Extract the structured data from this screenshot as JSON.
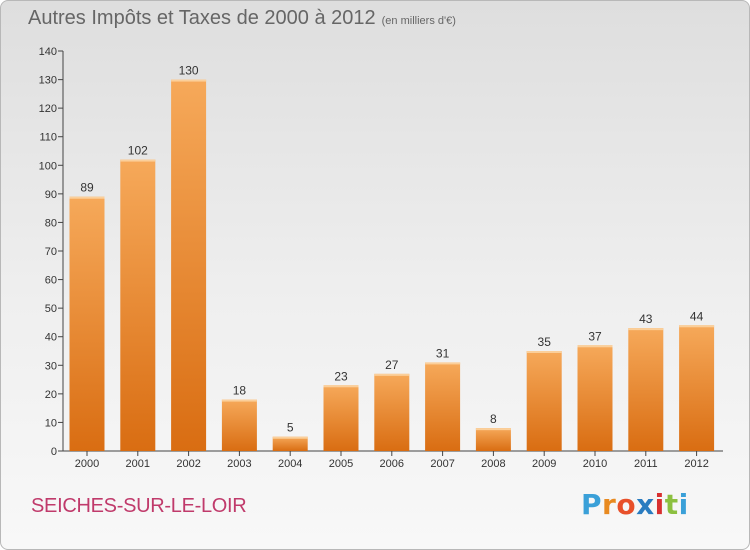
{
  "header": {
    "title": "Autres Impôts et Taxes de 2000 à 2012",
    "subtitle": "(en milliers d'€)"
  },
  "footer": {
    "city": "SEICHES-SUR-LE-LOIR",
    "logo": [
      "P",
      "r",
      "o",
      "x",
      "i",
      "t",
      "i"
    ]
  },
  "colors": {
    "bar_top": "#f6a95a",
    "bar_bottom": "#d96d12",
    "axis": "#444444",
    "grid": "#c8c8c8",
    "city": "#c03a6b"
  },
  "chart_data": {
    "type": "bar",
    "title": "Autres Impôts et Taxes de 2000 à 2012",
    "subtitle": "(en milliers d'€)",
    "categories": [
      "2000",
      "2001",
      "2002",
      "2003",
      "2004",
      "2005",
      "2006",
      "2007",
      "2008",
      "2009",
      "2010",
      "2011",
      "2012"
    ],
    "values": [
      89,
      102,
      130,
      18,
      5,
      23,
      27,
      31,
      8,
      35,
      37,
      43,
      44
    ],
    "data_labels": [
      "89",
      "102",
      "130",
      "18",
      "5",
      "23",
      "27",
      "31",
      "8",
      "35",
      "37",
      "43",
      "44"
    ],
    "yticks": [
      "0",
      "10",
      "20",
      "30",
      "40",
      "50",
      "60",
      "70",
      "80",
      "90",
      "100",
      "110",
      "120",
      "130",
      "140"
    ],
    "ylim": [
      0,
      140
    ],
    "xlabel": "",
    "ylabel": "",
    "grid": false,
    "legend": "none"
  }
}
